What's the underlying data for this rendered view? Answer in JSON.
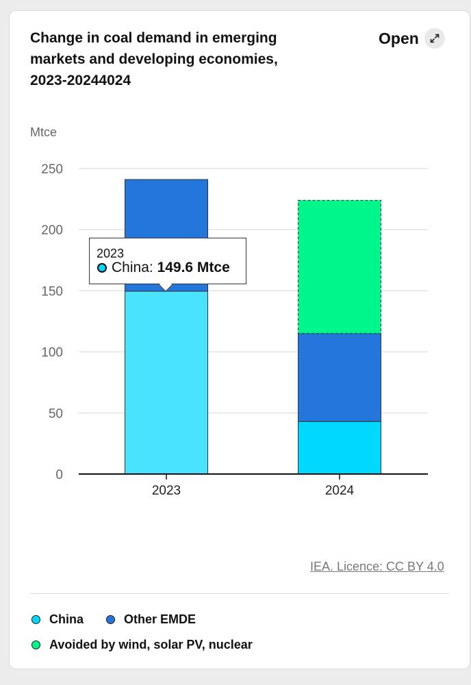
{
  "header": {
    "title": "Change in coal demand in emerging markets and developing economies, 2023-20244024",
    "open_label": "Open"
  },
  "colors": {
    "china": "#00d8ff",
    "china_highlight": "#4ae3ff",
    "other_emde": "#2376dc",
    "avoided": "#00f58a",
    "grid": "#e3e3e3",
    "axis": "#111111"
  },
  "chart_data": {
    "type": "bar",
    "stacked": true,
    "title": "Change in coal demand in emerging markets and developing economies, 2023-20244024",
    "ylabel": "Mtce",
    "xlabel": "",
    "ylim": [
      0,
      250
    ],
    "yticks": [
      0,
      50,
      100,
      150,
      200,
      250
    ],
    "categories": [
      "2023",
      "2024"
    ],
    "grid": true,
    "legend_position": "bottom",
    "series": [
      {
        "name": "China",
        "key": "china",
        "values": [
          149.6,
          43
        ]
      },
      {
        "name": "Other EMDE",
        "key": "other_emde",
        "values": [
          91.4,
          72
        ]
      },
      {
        "name": "Avoided by wind, solar PV, nuclear",
        "key": "avoided",
        "values": [
          0,
          109
        ]
      }
    ]
  },
  "tooltip": {
    "year": "2023",
    "series": "China",
    "separator": ": ",
    "value": "149.6 Mtce"
  },
  "credit": "IEA. Licence: CC BY 4.0",
  "legend": [
    {
      "label": "China",
      "color_key": "china"
    },
    {
      "label": "Other EMDE",
      "color_key": "other_emde"
    },
    {
      "label": "Avoided by wind, solar PV, nuclear",
      "color_key": "avoided"
    }
  ]
}
